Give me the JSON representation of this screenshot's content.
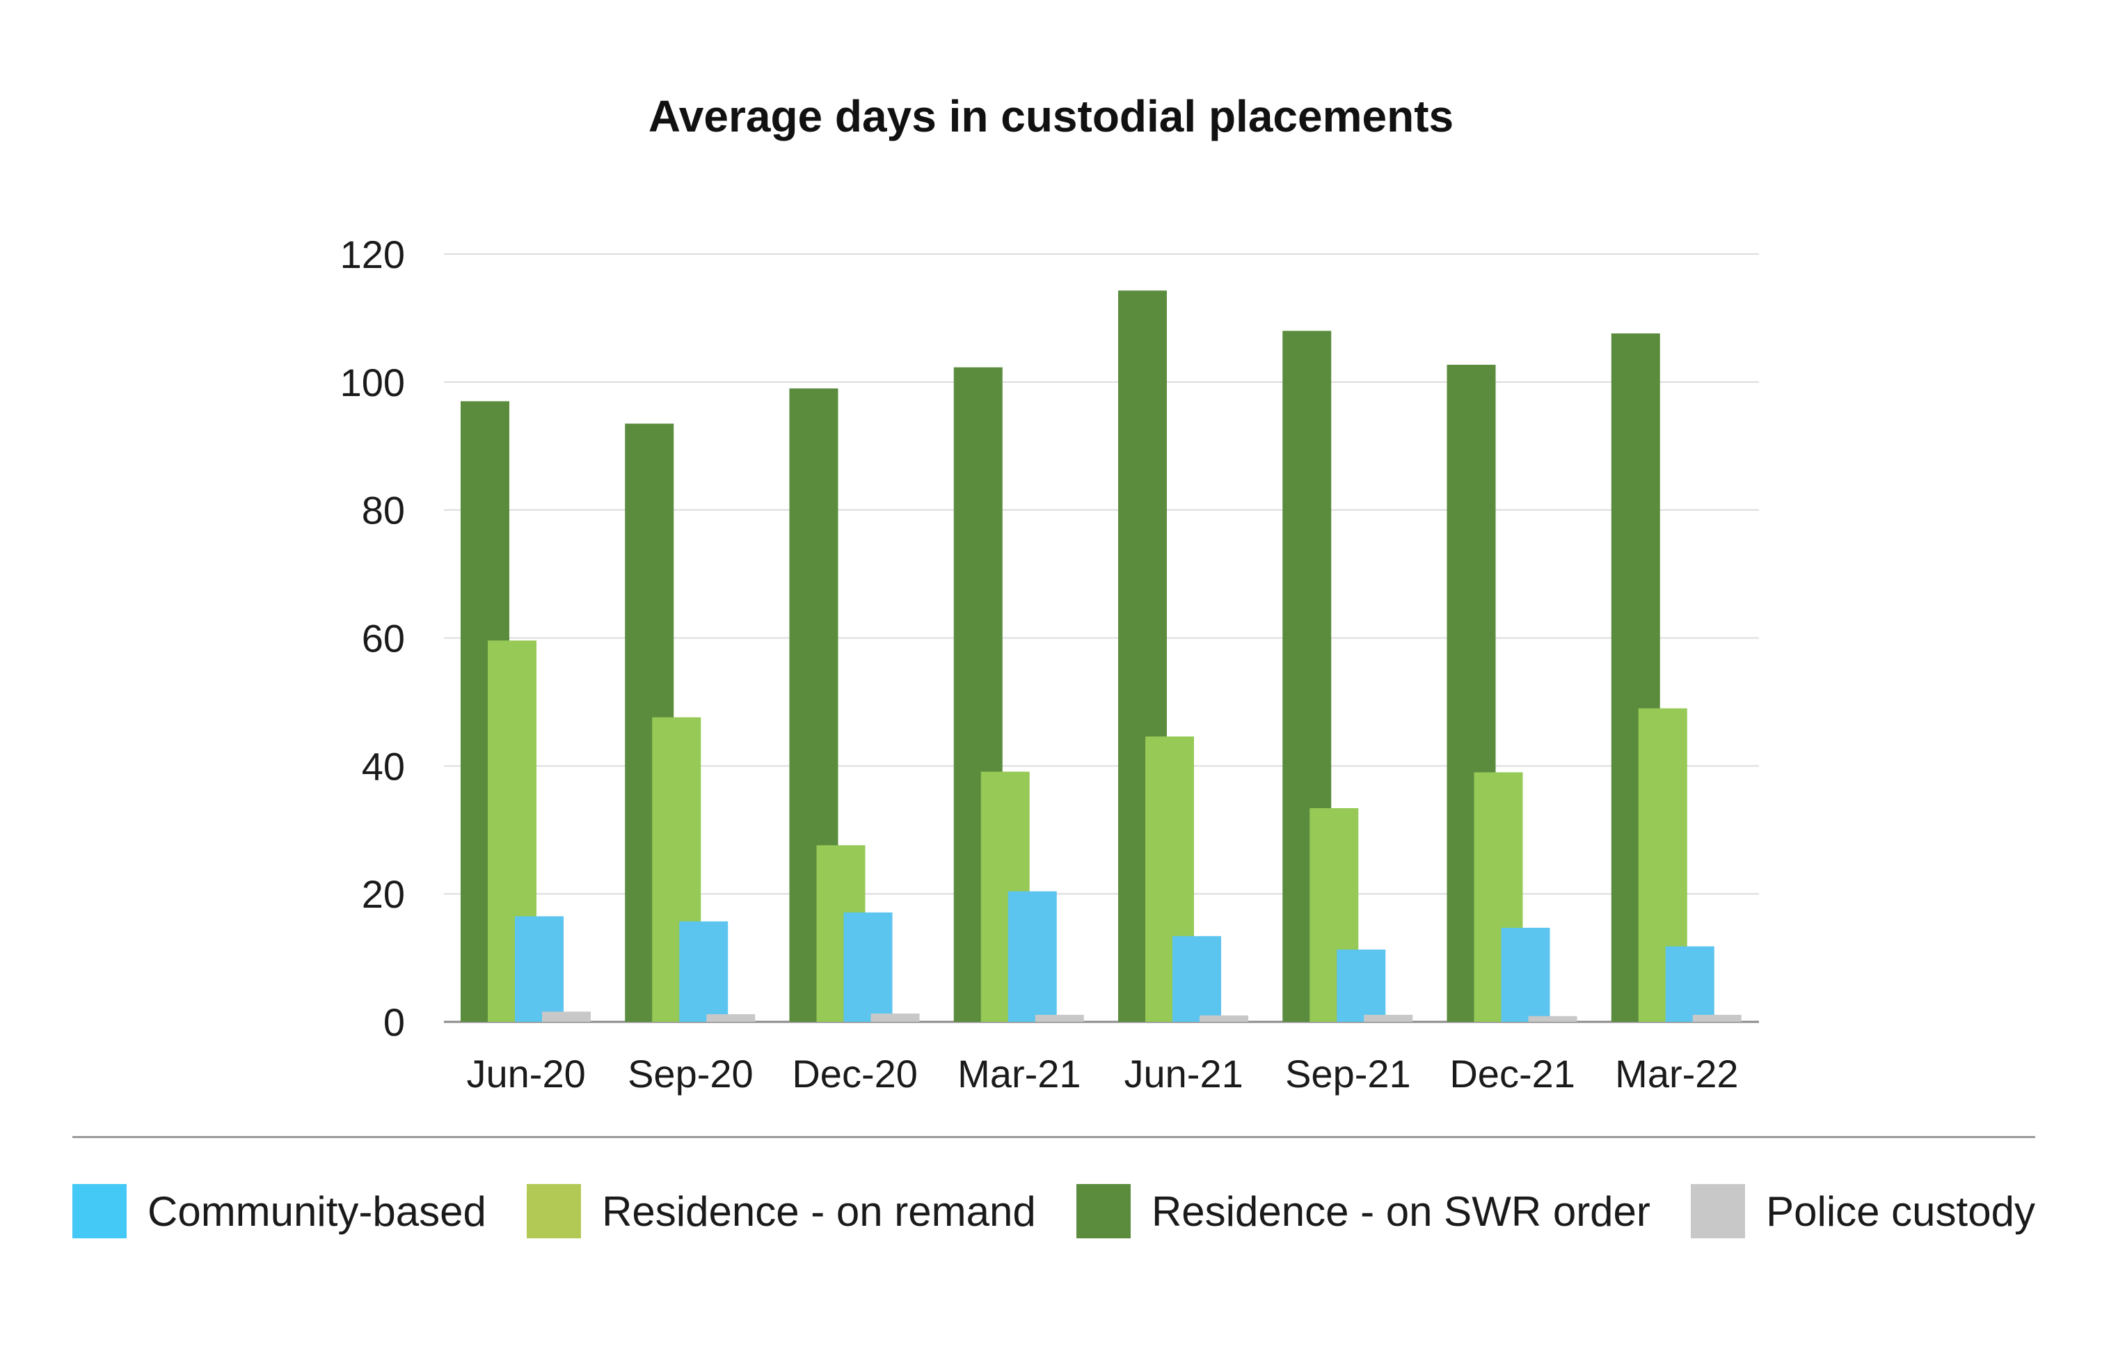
{
  "chart_data": {
    "type": "bar",
    "title": "Average days in custodial placements",
    "xlabel": "",
    "ylabel": "",
    "ylim": [
      0,
      120
    ],
    "yticks": [
      0,
      20,
      40,
      60,
      80,
      100,
      120
    ],
    "grid": true,
    "legend_position": "bottom",
    "categories": [
      "Jun-20",
      "Sep-20",
      "Dec-20",
      "Mar-21",
      "Jun-21",
      "Sep-21",
      "Dec-21",
      "Mar-22"
    ],
    "series": [
      {
        "name": "Residence - on SWR order",
        "color": "#5b8c3e",
        "values": [
          97,
          93.5,
          99,
          102.3,
          114.3,
          108,
          102.7,
          107.6
        ]
      },
      {
        "name": "Residence - on remand",
        "color": "#96c955",
        "values": [
          59.6,
          47.6,
          27.6,
          39.1,
          44.6,
          33.4,
          39,
          49
        ]
      },
      {
        "name": "Community-based",
        "color": "#5bc4ef",
        "values": [
          16.5,
          15.7,
          17.1,
          20.4,
          13.4,
          11.3,
          14.7,
          11.8
        ]
      },
      {
        "name": "Police custody",
        "color": "#c8c8c8",
        "values": [
          1.6,
          1.2,
          1.3,
          1.1,
          1.0,
          1.1,
          0.9,
          1.1
        ]
      }
    ]
  },
  "legend": [
    {
      "label": "Community-based",
      "color": "#44c8f5"
    },
    {
      "label": "Residence - on remand",
      "color": "#b2c955"
    },
    {
      "label": "Residence - on SWR order",
      "color": "#5b8c3e"
    },
    {
      "label": "Police custody",
      "color": "#c8c8c8"
    }
  ]
}
